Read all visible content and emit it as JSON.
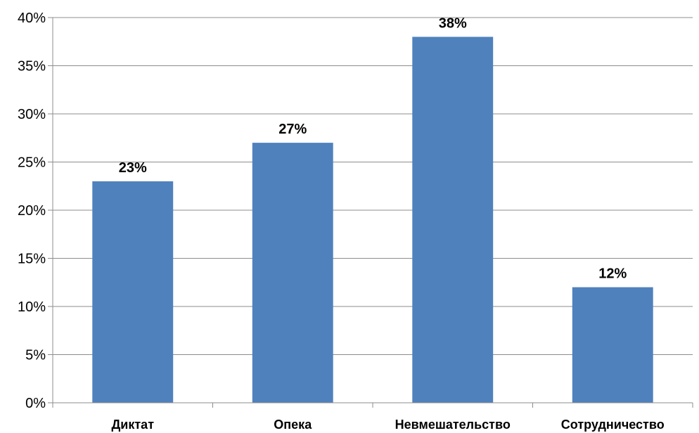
{
  "chart_data": {
    "type": "bar",
    "categories": [
      "Диктат",
      "Опека",
      "Невмешательство",
      "Сотрудничество"
    ],
    "values": [
      23,
      27,
      38,
      12
    ],
    "data_labels": [
      "23%",
      "27%",
      "38%",
      "12%"
    ],
    "y_ticks": [
      "0%",
      "5%",
      "10%",
      "15%",
      "20%",
      "25%",
      "30%",
      "35%",
      "40%"
    ],
    "ylim": [
      0,
      40
    ],
    "y_step": 5,
    "grid": true,
    "legend": "none",
    "title": "",
    "xlabel": "",
    "ylabel": "",
    "bar_color": "#4f81bd",
    "grid_color": "#8c8c8c"
  }
}
